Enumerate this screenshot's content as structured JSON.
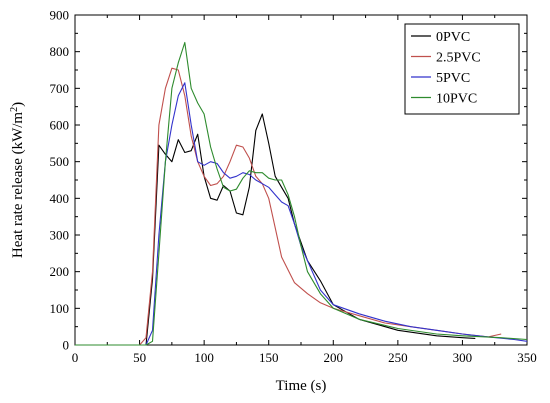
{
  "chart_data": {
    "type": "line",
    "xlabel": "Time (s)",
    "ylabel_main": "Heat rate release (kW/m",
    "ylabel_sup": "2",
    "ylabel_close": ")",
    "xlim": [
      0,
      350
    ],
    "ylim": [
      0,
      900
    ],
    "xticks": [
      0,
      50,
      100,
      150,
      200,
      250,
      300,
      350
    ],
    "yticks": [
      0,
      100,
      200,
      300,
      400,
      500,
      600,
      700,
      800,
      900
    ],
    "grid": false,
    "legend_position": "top-right",
    "series": [
      {
        "name": "0PVC",
        "color": "#000000",
        "x": [
          0,
          50,
          55,
          60,
          65,
          70,
          75,
          80,
          85,
          90,
          95,
          100,
          105,
          110,
          115,
          120,
          125,
          130,
          135,
          140,
          145,
          150,
          155,
          160,
          165,
          170,
          180,
          190,
          200,
          220,
          250,
          280,
          300,
          310
        ],
        "y": [
          0,
          0,
          0,
          180,
          545,
          520,
          500,
          560,
          525,
          530,
          575,
          460,
          400,
          395,
          435,
          420,
          360,
          355,
          430,
          585,
          630,
          550,
          460,
          430,
          400,
          330,
          230,
          175,
          110,
          70,
          40,
          25,
          20,
          18
        ]
      },
      {
        "name": "2.5PVC",
        "color": "#c0504d",
        "x": [
          0,
          45,
          50,
          55,
          60,
          65,
          70,
          75,
          80,
          85,
          90,
          95,
          100,
          105,
          110,
          115,
          120,
          125,
          130,
          135,
          140,
          145,
          150,
          155,
          160,
          170,
          180,
          190,
          200,
          210,
          220,
          240,
          260,
          280,
          300,
          320,
          330
        ],
        "y": [
          0,
          0,
          0,
          20,
          200,
          600,
          700,
          755,
          750,
          680,
          570,
          500,
          460,
          435,
          440,
          460,
          500,
          545,
          540,
          510,
          460,
          440,
          400,
          320,
          240,
          170,
          140,
          115,
          100,
          90,
          80,
          60,
          50,
          40,
          30,
          22,
          30
        ]
      },
      {
        "name": "5PVC",
        "color": "#3333cc",
        "x": [
          0,
          50,
          55,
          60,
          65,
          70,
          75,
          80,
          85,
          90,
          95,
          100,
          105,
          110,
          115,
          120,
          125,
          130,
          135,
          140,
          145,
          150,
          155,
          160,
          165,
          170,
          175,
          180,
          190,
          200,
          220,
          240,
          260,
          280,
          300,
          320,
          340,
          350
        ],
        "y": [
          0,
          0,
          0,
          40,
          300,
          500,
          600,
          680,
          715,
          600,
          500,
          490,
          500,
          495,
          470,
          455,
          460,
          470,
          465,
          450,
          440,
          430,
          410,
          390,
          380,
          330,
          270,
          230,
          150,
          110,
          85,
          65,
          50,
          40,
          30,
          22,
          15,
          10
        ]
      },
      {
        "name": "10PVC",
        "color": "#2e8b2e",
        "x": [
          0,
          55,
          60,
          65,
          70,
          75,
          80,
          85,
          90,
          95,
          100,
          105,
          110,
          115,
          120,
          125,
          130,
          135,
          140,
          145,
          150,
          155,
          160,
          165,
          170,
          175,
          180,
          190,
          200,
          220,
          250,
          280,
          300,
          330,
          350
        ],
        "y": [
          0,
          0,
          10,
          250,
          500,
          700,
          770,
          825,
          700,
          660,
          630,
          540,
          480,
          430,
          420,
          425,
          455,
          475,
          470,
          470,
          455,
          450,
          450,
          410,
          350,
          270,
          200,
          140,
          100,
          70,
          45,
          30,
          25,
          20,
          15
        ]
      }
    ]
  }
}
